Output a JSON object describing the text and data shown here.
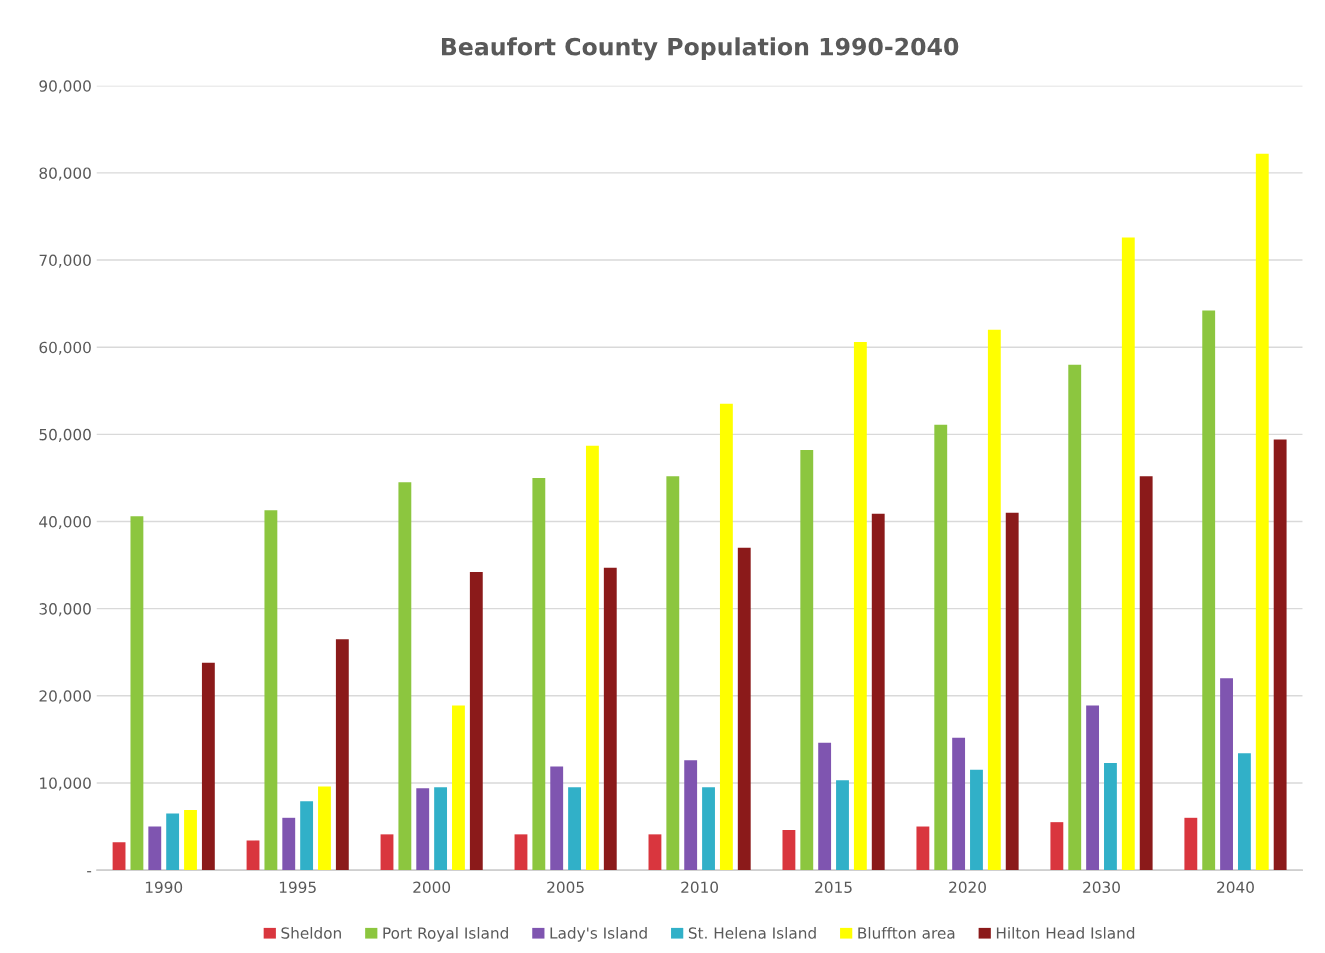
{
  "chart_data": {
    "type": "bar",
    "title": "Beaufort County Population 1990-2040",
    "categories": [
      "1990",
      "1995",
      "2000",
      "2005",
      "2010",
      "2015",
      "2020",
      "2030",
      "2040"
    ],
    "series": [
      {
        "name": "Sheldon",
        "color": "#d9363e",
        "values": [
          3200,
          3400,
          4100,
          4100,
          4100,
          4600,
          5000,
          5500,
          6000
        ]
      },
      {
        "name": "Port Royal Island",
        "color": "#8cc63f",
        "values": [
          40600,
          41300,
          44500,
          45000,
          45200,
          48200,
          51100,
          58000,
          64200
        ]
      },
      {
        "name": "Lady's Island",
        "color": "#7f55b0",
        "values": [
          5000,
          6000,
          9400,
          11900,
          12600,
          14600,
          15200,
          18900,
          22000
        ]
      },
      {
        "name": "St. Helena Island",
        "color": "#31b0c8",
        "values": [
          6500,
          7900,
          9500,
          9500,
          9500,
          10300,
          11500,
          12300,
          13400
        ]
      },
      {
        "name": "Bluffton area",
        "color": "#ffff00",
        "values": [
          6900,
          9600,
          18900,
          48700,
          53500,
          60600,
          62000,
          72600,
          82200
        ]
      },
      {
        "name": "Hilton Head Island",
        "color": "#8b1a1a",
        "values": [
          23800,
          26500,
          34200,
          34700,
          37000,
          40900,
          41000,
          45200,
          49400
        ]
      }
    ],
    "ylim": [
      0,
      90000
    ],
    "yticks": [
      {
        "value": 0,
        "label": "-"
      },
      {
        "value": 10000,
        "label": "10,000"
      },
      {
        "value": 20000,
        "label": "20,000"
      },
      {
        "value": 30000,
        "label": "30,000"
      },
      {
        "value": 40000,
        "label": "40,000"
      },
      {
        "value": 50000,
        "label": "50,000"
      },
      {
        "value": 60000,
        "label": "60,000"
      },
      {
        "value": 70000,
        "label": "70,000"
      },
      {
        "value": 80000,
        "label": "80,000"
      },
      {
        "value": 90000,
        "label": "90,000"
      }
    ],
    "grid": "y",
    "legend": "bottom"
  }
}
